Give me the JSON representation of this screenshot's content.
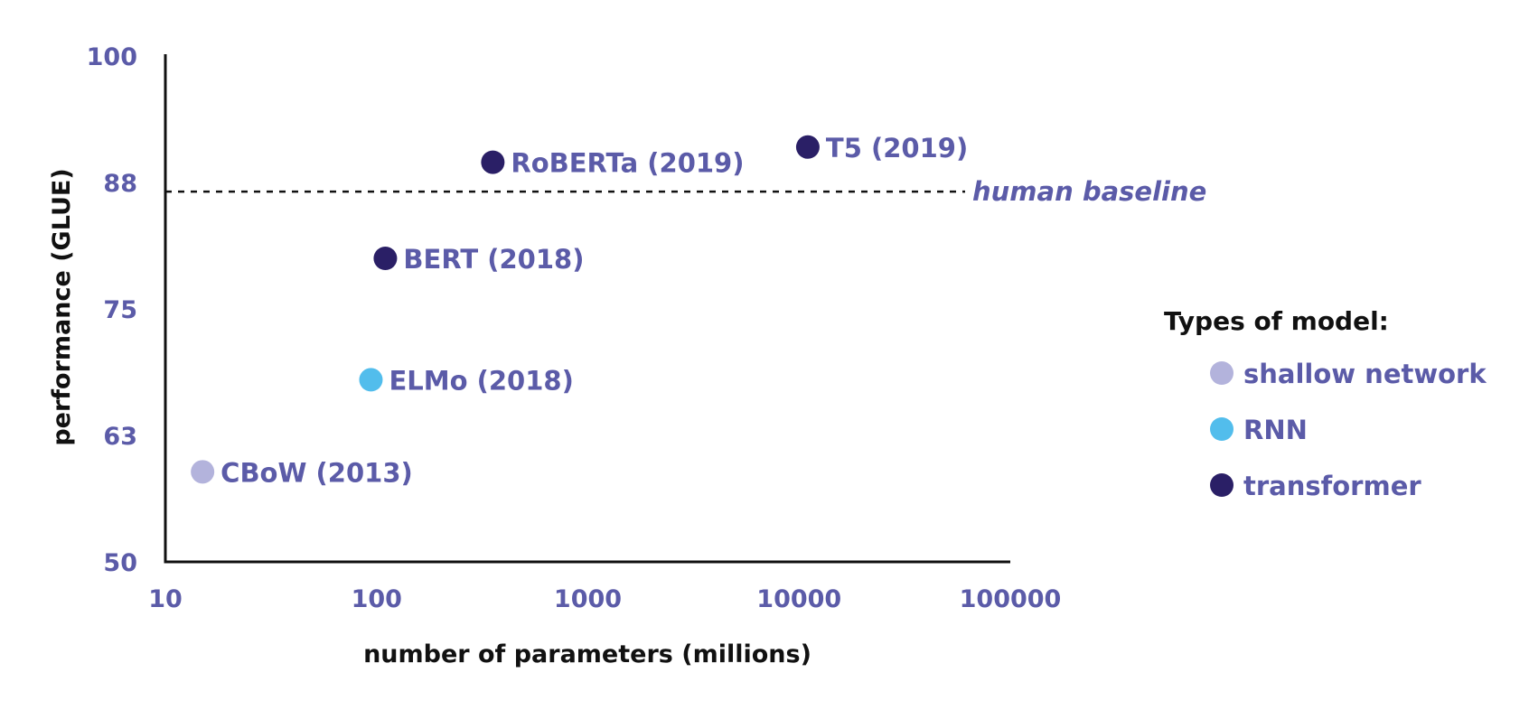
{
  "chart_data": {
    "type": "scatter",
    "xlabel": "number of parameters (millions)",
    "ylabel": "performance (GLUE)",
    "x_scale": "log",
    "xlim": [
      10,
      100000
    ],
    "ylim": [
      50,
      100
    ],
    "x_ticks": [
      "10",
      "100",
      "1000",
      "10000",
      "100000"
    ],
    "y_ticks": [
      "50",
      "63",
      "75",
      "88",
      "100"
    ],
    "x_tick_values": [
      10,
      100,
      1000,
      10000,
      100000
    ],
    "y_tick_values": [
      50,
      62.5,
      75,
      87.5,
      100
    ],
    "grid": false,
    "legend_position": "right",
    "legend_title": "Types of model:",
    "categories": [
      {
        "key": "shallow",
        "label": "shallow network",
        "color": "#b3b3dc"
      },
      {
        "key": "rnn",
        "label": "RNN",
        "color": "#52bdec"
      },
      {
        "key": "transformer",
        "label": "transformer",
        "color": "#2a1f66"
      }
    ],
    "points": [
      {
        "label": "CBoW (2013)",
        "x": 15,
        "y": 58.9,
        "category": "shallow"
      },
      {
        "label": "ELMo (2018)",
        "x": 94,
        "y": 68.0,
        "category": "rnn"
      },
      {
        "label": "BERT (2018)",
        "x": 110,
        "y": 80.0,
        "category": "transformer"
      },
      {
        "label": "RoBERTa (2019)",
        "x": 355,
        "y": 89.5,
        "category": "transformer"
      },
      {
        "label": "T5 (2019)",
        "x": 11000,
        "y": 91.0,
        "category": "transformer"
      }
    ],
    "reference_lines": [
      {
        "label": "human baseline",
        "y": 86.6,
        "style": "dashed"
      }
    ]
  }
}
